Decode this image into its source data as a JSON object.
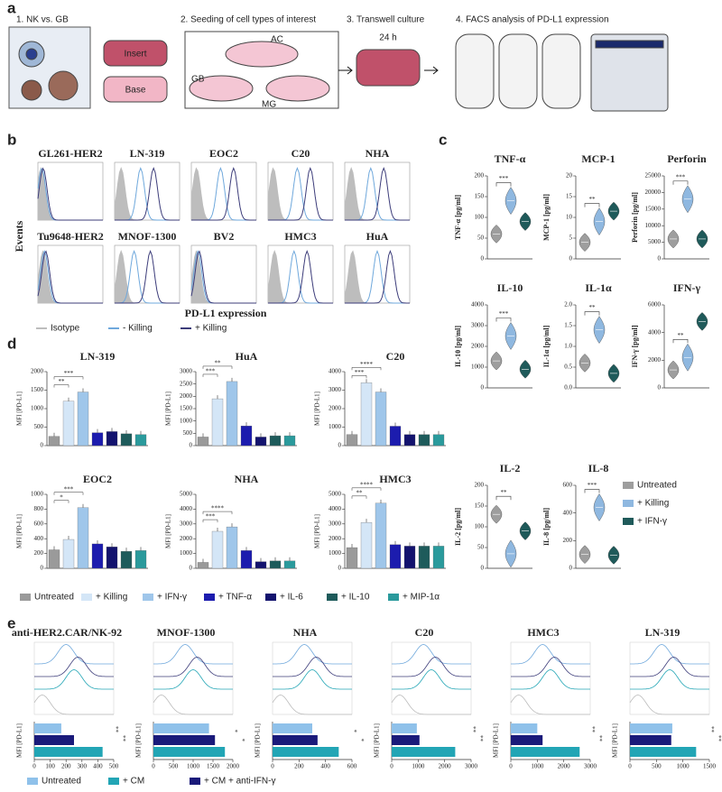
{
  "panel_labels": [
    "a",
    "b",
    "c",
    "d",
    "e"
  ],
  "diagram": {
    "steps": [
      "1. NK vs. GB",
      "2. Seeding of cell types of interest",
      "3. Transwell culture",
      "4. FACS analysis of PD-L1 expression"
    ],
    "insert": "Insert",
    "base": "Base",
    "cells": [
      "AC",
      "GB",
      "MG"
    ],
    "time": "24 h"
  },
  "histograms": {
    "y_label": "Events",
    "x_label": "PD-L1 expression",
    "samples": [
      "GL261-HER2",
      "LN-319",
      "EOC2",
      "C20",
      "NHA",
      "Tu9648-HER2",
      "MNOF-1300",
      "BV2",
      "HMC3",
      "HuA"
    ],
    "legend": [
      {
        "name": "Isotype",
        "color": "#bdbdbd"
      },
      {
        "name": "- Killing",
        "color": "#6fa8dc"
      },
      {
        "name": "+ Killing",
        "color": "#3c3c7a"
      }
    ]
  },
  "legends": {
    "violins": [
      {
        "name": "Untreated",
        "color": "#9e9e9e"
      },
      {
        "name": "+ Killing",
        "color": "#8fb8e0"
      },
      {
        "name": "+ IFN-γ",
        "color": "#1f5a5a"
      }
    ],
    "bars": [
      {
        "name": "Untreated",
        "color": "#9a9a9a"
      },
      {
        "name": "+ Killing",
        "color": "#d4e6f7"
      },
      {
        "name": "+ IFN-γ",
        "color": "#9fc6ea"
      },
      {
        "name": "+ TNF-α",
        "color": "#1c1cae"
      },
      {
        "name": "+ IL-6",
        "color": "#13136e"
      },
      {
        "name": "+ IL-10",
        "color": "#1e5b5b"
      },
      {
        "name": "+ MIP-1α",
        "color": "#2a9a9c"
      }
    ],
    "hbars": [
      {
        "name": "Untreated",
        "color": "#8fc1ea"
      },
      {
        "name": "+ CM",
        "color": "#22a5b5"
      },
      {
        "name": "+ CM + anti-IFN-γ",
        "color": "#1a1a7a"
      }
    ]
  },
  "chart_data": [
    {
      "type": "violin",
      "title": "TNF-α",
      "y_label": "TNF-α [pg/ml]",
      "values": [
        60,
        140,
        90
      ],
      "ylim": [
        0,
        200
      ],
      "yticks": [
        0,
        50,
        100,
        150,
        200
      ],
      "annotations": [
        "***"
      ]
    },
    {
      "type": "violin",
      "title": "MCP-1",
      "y_label": "MCP-1 [pg/ml]",
      "values": [
        4,
        9,
        11.5
      ],
      "ylim": [
        0,
        20
      ],
      "yticks": [
        0,
        5,
        10,
        15,
        20
      ],
      "annotations": [
        "**"
      ]
    },
    {
      "type": "violin",
      "title": "Perforin",
      "y_label": "Perforin [pg/ml]",
      "values": [
        6000,
        18000,
        6000
      ],
      "ylim": [
        0,
        25000
      ],
      "yticks": [
        0,
        5000,
        10000,
        15000,
        20000,
        25000
      ],
      "annotations": [
        "***"
      ]
    },
    {
      "type": "violin",
      "title": "IL-10",
      "y_label": "IL-10 [pg/ml]",
      "values": [
        1300,
        2500,
        900
      ],
      "ylim": [
        0,
        4000
      ],
      "yticks": [
        0,
        1000,
        2000,
        3000,
        4000
      ],
      "annotations": [
        "***"
      ]
    },
    {
      "type": "violin",
      "title": "IL-1α",
      "y_label": "IL-1α [pg/ml]",
      "values": [
        0.6,
        1.4,
        0.35
      ],
      "ylim": [
        0,
        2
      ],
      "yticks": [
        {
          "value": 0,
          "label": "0.0"
        },
        0.5,
        {
          "value": 1,
          "label": "1.0"
        },
        1.5,
        {
          "value": 2,
          "label": "2.0"
        }
      ],
      "annotations": [
        "**"
      ]
    },
    {
      "type": "violin",
      "title": "IFN-γ",
      "y_label": "IFN-γ [pg/ml]",
      "values": [
        1300,
        2200,
        4800
      ],
      "ylim": [
        0,
        6000
      ],
      "yticks": [
        0,
        2000,
        4000,
        6000
      ],
      "annotations": [
        "**"
      ]
    },
    {
      "type": "violin",
      "title": "IL-2",
      "y_label": "IL-2 [pg/ml]",
      "values": [
        130,
        35,
        90
      ],
      "ylim": [
        0,
        200
      ],
      "yticks": [
        0,
        50,
        100,
        150,
        200
      ],
      "annotations": [
        "**"
      ]
    },
    {
      "type": "violin",
      "title": "IL-8",
      "y_label": "IL-8 [pg/ml]",
      "values": [
        100,
        440,
        95
      ],
      "ylim": [
        0,
        600
      ],
      "yticks": [
        0,
        200,
        400,
        600
      ],
      "annotations": [
        "***"
      ]
    },
    {
      "type": "bar",
      "title": "LN-319",
      "y_label": "MFI [PD-L1]",
      "values": [
        250,
        1200,
        1450,
        350,
        380,
        320,
        300
      ],
      "ylim": [
        0,
        2000
      ],
      "yticks": [
        0,
        500,
        1000,
        1500,
        2000
      ],
      "annotations": [
        "**",
        "***"
      ]
    },
    {
      "type": "bar",
      "title": "HuA",
      "y_label": "MFI [PD-L1]",
      "values": [
        350,
        1900,
        2600,
        800,
        350,
        400,
        400
      ],
      "ylim": [
        0,
        3000
      ],
      "yticks": [
        0,
        500,
        1000,
        1500,
        2000,
        2500,
        3000
      ],
      "annotations": [
        "***",
        "**"
      ]
    },
    {
      "type": "bar",
      "title": "C20",
      "y_label": "MFI [PD-L1]",
      "values": [
        600,
        3400,
        2900,
        1050,
        600,
        600,
        600
      ],
      "ylim": [
        0,
        4000
      ],
      "yticks": [
        0,
        1000,
        2000,
        3000,
        4000
      ],
      "annotations": [
        "***",
        "****"
      ]
    },
    {
      "type": "bar",
      "title": "EOC2",
      "y_label": "MFI [PD-L1]",
      "values": [
        250,
        390,
        820,
        330,
        290,
        230,
        240
      ],
      "ylim": [
        0,
        1000
      ],
      "yticks": [
        0,
        200,
        400,
        600,
        800,
        1000
      ],
      "annotations": [
        "*",
        "***"
      ]
    },
    {
      "type": "bar",
      "title": "NHA",
      "y_label": "MFI [PD-L1]",
      "values": [
        400,
        2500,
        2800,
        1200,
        450,
        500,
        500
      ],
      "ylim": [
        0,
        5000
      ],
      "yticks": [
        0,
        1000,
        2000,
        3000,
        4000,
        5000
      ],
      "annotations": [
        "***",
        "****"
      ]
    },
    {
      "type": "bar",
      "title": "HMC3",
      "y_label": "MFI [PD-L1]",
      "values": [
        1400,
        3100,
        4400,
        1600,
        1500,
        1500,
        1500
      ],
      "ylim": [
        0,
        5000
      ],
      "yticks": [
        0,
        1000,
        2000,
        3000,
        4000,
        5000
      ],
      "annotations": [
        "**",
        "****"
      ]
    },
    {
      "type": "hbar",
      "title": "anti-HER2.CAR/NK-92",
      "x_label": "MFI [PD-L1]",
      "values": [
        170,
        430,
        250
      ],
      "xlim": [
        0,
        500
      ],
      "xticks": [
        0,
        100,
        200,
        300,
        400,
        500
      ],
      "annotations": [
        "**",
        "**"
      ]
    },
    {
      "type": "hbar",
      "title": "MNOF-1300",
      "x_label": "MFI [PD-L1]",
      "values": [
        1400,
        1800,
        1550
      ],
      "xlim": [
        0,
        2000
      ],
      "xticks": [
        0,
        500,
        1000,
        1500,
        2000
      ],
      "annotations": [
        "*",
        "*"
      ]
    },
    {
      "type": "hbar",
      "title": "NHA",
      "x_label": "MFI [PD-L1]",
      "values": [
        300,
        500,
        340
      ],
      "xlim": [
        0,
        600
      ],
      "xticks": [
        0,
        200,
        400,
        600
      ],
      "annotations": [
        "*",
        "*"
      ]
    },
    {
      "type": "hbar",
      "title": "C20",
      "x_label": "MFI [PD-L1]",
      "values": [
        950,
        2400,
        1050
      ],
      "xlim": [
        0,
        3000
      ],
      "xticks": [
        0,
        1000,
        2000,
        3000
      ],
      "annotations": [
        "**",
        "**"
      ]
    },
    {
      "type": "hbar",
      "title": "HMC3",
      "x_label": "MFI [PD-L1]",
      "values": [
        1000,
        2600,
        1200
      ],
      "xlim": [
        0,
        3000
      ],
      "xticks": [
        0,
        1000,
        2000,
        3000
      ],
      "annotations": [
        "**",
        "**"
      ]
    },
    {
      "type": "hbar",
      "title": "LN-319",
      "x_label": "MFI [PD-L1]",
      "values": [
        800,
        1250,
        780
      ],
      "xlim": [
        0,
        1500
      ],
      "xticks": [
        0,
        500,
        1000,
        1500
      ],
      "annotations": [
        "**",
        "**"
      ]
    }
  ]
}
